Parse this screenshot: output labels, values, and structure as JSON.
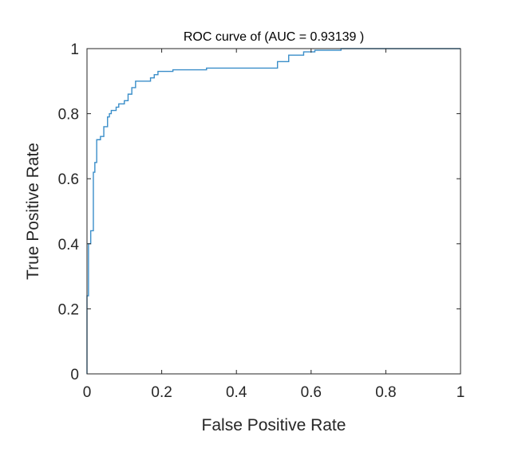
{
  "chart_data": {
    "type": "line",
    "title": "ROC curve of (AUC = 0.93139 )",
    "xlabel": "False Positive Rate",
    "ylabel": "True Positive Rate",
    "xlim": [
      0,
      1
    ],
    "ylim": [
      0,
      1
    ],
    "xticks": [
      "0",
      "0.2",
      "0.4",
      "0.6",
      "0.8",
      "1"
    ],
    "yticks": [
      "0",
      "0.2",
      "0.4",
      "0.6",
      "0.8",
      "1"
    ],
    "grid": false,
    "line_color": "#3a8ec9",
    "series": [
      {
        "values_x": [
          0,
          0,
          0.004,
          0.004,
          0.01,
          0.01,
          0.017,
          0.017,
          0.021,
          0.021,
          0.026,
          0.026,
          0.03,
          0.03,
          0.036,
          0.036,
          0.045,
          0.045,
          0.055,
          0.055,
          0.06,
          0.06,
          0.065,
          0.065,
          0.072,
          0.072,
          0.078,
          0.078,
          0.085,
          0.085,
          0.1,
          0.1,
          0.11,
          0.11,
          0.12,
          0.12,
          0.13,
          0.13,
          0.14,
          0.14,
          0.15,
          0.15,
          0.17,
          0.17,
          0.18,
          0.18,
          0.19,
          0.19,
          0.2,
          0.2,
          0.23,
          0.23,
          0.32,
          0.32,
          0.51,
          0.51,
          0.54,
          0.54,
          0.58,
          0.58,
          0.6,
          0.6,
          0.61,
          0.61,
          0.68,
          0.68,
          1
        ],
        "values_y": [
          0,
          0.24,
          0.24,
          0.4,
          0.4,
          0.44,
          0.44,
          0.62,
          0.62,
          0.65,
          0.65,
          0.72,
          0.72,
          0.72,
          0.72,
          0.73,
          0.73,
          0.76,
          0.76,
          0.79,
          0.79,
          0.8,
          0.8,
          0.81,
          0.81,
          0.81,
          0.81,
          0.82,
          0.82,
          0.83,
          0.83,
          0.84,
          0.84,
          0.86,
          0.86,
          0.88,
          0.88,
          0.9,
          0.9,
          0.9,
          0.9,
          0.9,
          0.9,
          0.91,
          0.91,
          0.92,
          0.92,
          0.93,
          0.93,
          0.93,
          0.93,
          0.935,
          0.935,
          0.94,
          0.94,
          0.96,
          0.96,
          0.98,
          0.98,
          0.99,
          0.99,
          0.99,
          0.99,
          0.995,
          0.995,
          1,
          1
        ]
      }
    ]
  }
}
